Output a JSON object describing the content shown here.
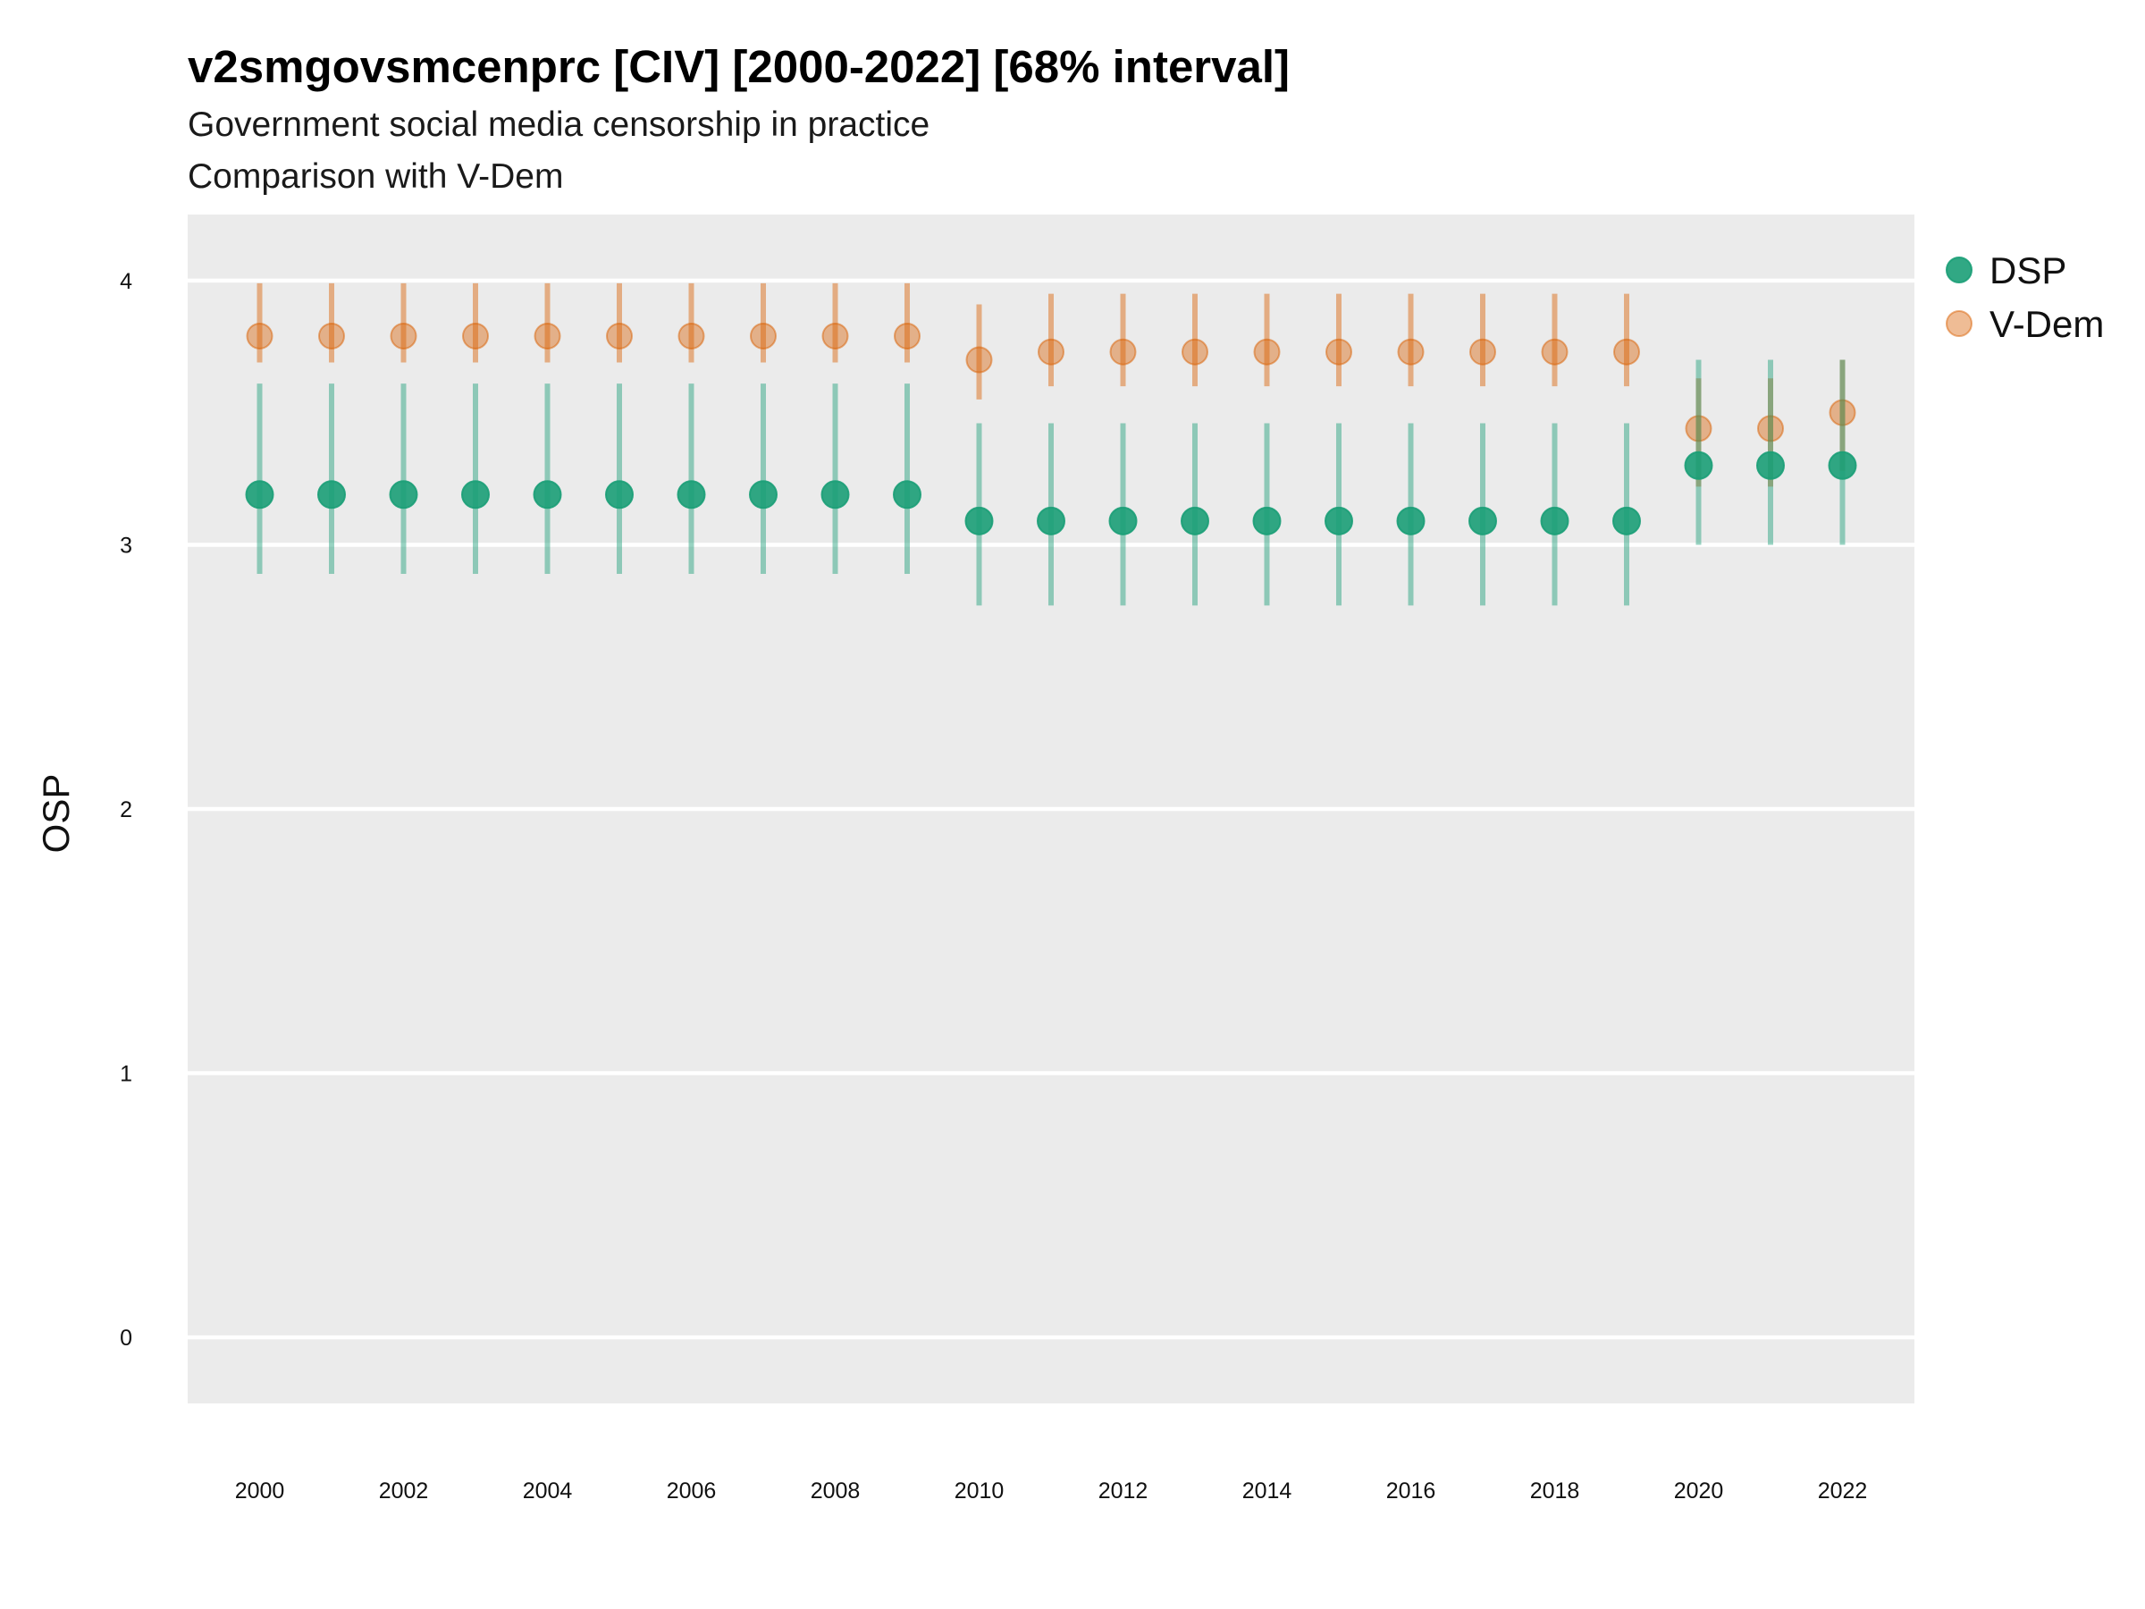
{
  "chart_data": {
    "type": "scatter",
    "title": "v2smgovsmcenprc [CIV] [2000-2022] [68% interval]",
    "subtitle": "Government social media censorship in practice",
    "caption_line": "Comparison with V-Dem",
    "ylabel": "OSP",
    "xlabel": "",
    "ylim": [
      -0.25,
      4.25
    ],
    "yticks": [
      0,
      1,
      2,
      3,
      4
    ],
    "xticks": [
      2000,
      2002,
      2004,
      2006,
      2008,
      2010,
      2012,
      2014,
      2016,
      2018,
      2020,
      2022
    ],
    "x": [
      2000,
      2001,
      2002,
      2003,
      2004,
      2005,
      2006,
      2007,
      2008,
      2009,
      2010,
      2011,
      2012,
      2013,
      2014,
      2015,
      2016,
      2017,
      2018,
      2019,
      2020,
      2021,
      2022
    ],
    "grid": true,
    "legend_position": "right",
    "series": [
      {
        "name": "DSP",
        "color": "#1b9e77",
        "values": [
          3.19,
          3.19,
          3.19,
          3.19,
          3.19,
          3.19,
          3.19,
          3.19,
          3.19,
          3.19,
          3.09,
          3.09,
          3.09,
          3.09,
          3.09,
          3.09,
          3.09,
          3.09,
          3.09,
          3.09,
          3.3,
          3.3,
          3.3
        ],
        "lower": [
          2.89,
          2.89,
          2.89,
          2.89,
          2.89,
          2.89,
          2.89,
          2.89,
          2.89,
          2.89,
          2.77,
          2.77,
          2.77,
          2.77,
          2.77,
          2.77,
          2.77,
          2.77,
          2.77,
          2.77,
          3.0,
          3.0,
          3.0
        ],
        "upper": [
          3.61,
          3.61,
          3.61,
          3.61,
          3.61,
          3.61,
          3.61,
          3.61,
          3.61,
          3.61,
          3.46,
          3.46,
          3.46,
          3.46,
          3.46,
          3.46,
          3.46,
          3.46,
          3.46,
          3.46,
          3.7,
          3.7,
          3.7
        ]
      },
      {
        "name": "V-Dem",
        "color": "#d95f02",
        "values": [
          3.79,
          3.79,
          3.79,
          3.79,
          3.79,
          3.79,
          3.79,
          3.79,
          3.79,
          3.79,
          3.7,
          3.73,
          3.73,
          3.73,
          3.73,
          3.73,
          3.73,
          3.73,
          3.73,
          3.73,
          3.44,
          3.44,
          3.5
        ],
        "lower": [
          3.69,
          3.69,
          3.69,
          3.69,
          3.69,
          3.69,
          3.69,
          3.69,
          3.69,
          3.69,
          3.55,
          3.6,
          3.6,
          3.6,
          3.6,
          3.6,
          3.6,
          3.6,
          3.6,
          3.6,
          3.22,
          3.22,
          3.28
        ],
        "upper": [
          3.99,
          3.99,
          3.99,
          3.99,
          3.99,
          3.99,
          3.99,
          3.99,
          3.99,
          3.99,
          3.91,
          3.95,
          3.95,
          3.95,
          3.95,
          3.95,
          3.95,
          3.95,
          3.95,
          3.95,
          3.63,
          3.63,
          3.7
        ]
      }
    ]
  }
}
